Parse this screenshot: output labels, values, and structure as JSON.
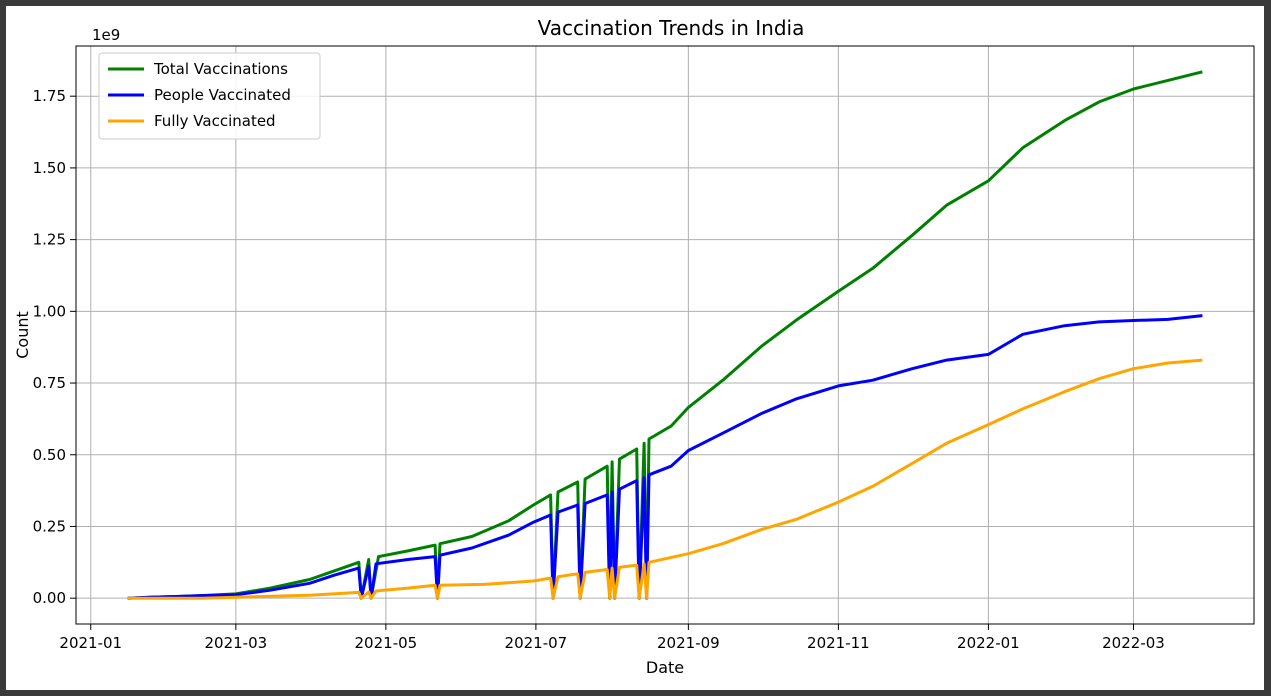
{
  "chart_data": {
    "type": "line",
    "title": "Vaccination Trends in India",
    "xlabel": "Date",
    "ylabel": "Count",
    "y_offset_label": "1e9",
    "y_scale_unit": 1000000000,
    "xlim": [
      "2020-12-26",
      "2022-04-19"
    ],
    "ylim": [
      -0.09,
      1.925
    ],
    "x_ticks": [
      "2021-01",
      "2021-03",
      "2021-05",
      "2021-07",
      "2021-09",
      "2021-11",
      "2022-01",
      "2022-03"
    ],
    "y_ticks": [
      0.0,
      0.25,
      0.5,
      0.75,
      1.0,
      1.25,
      1.5,
      1.75
    ],
    "y_tick_labels": [
      "0.00",
      "0.25",
      "0.50",
      "0.75",
      "1.00",
      "1.25",
      "1.50",
      "1.75"
    ],
    "grid": true,
    "legend_position": "top-left",
    "series": [
      {
        "name": "Total Vaccinations",
        "color": "#008000",
        "points": [
          [
            "2021-01-16",
            0.0
          ],
          [
            "2021-01-25",
            0.003
          ],
          [
            "2021-02-05",
            0.006
          ],
          [
            "2021-02-15",
            0.009
          ],
          [
            "2021-03-01",
            0.015
          ],
          [
            "2021-03-15",
            0.035
          ],
          [
            "2021-03-31",
            0.065
          ],
          [
            "2021-04-10",
            0.095
          ],
          [
            "2021-04-20",
            0.125
          ],
          [
            "2021-04-21",
            0.0
          ],
          [
            "2021-04-24",
            0.135
          ],
          [
            "2021-04-25",
            0.0
          ],
          [
            "2021-04-28",
            0.145
          ],
          [
            "2021-05-10",
            0.165
          ],
          [
            "2021-05-21",
            0.185
          ],
          [
            "2021-05-22",
            0.0
          ],
          [
            "2021-05-23",
            0.19
          ],
          [
            "2021-06-05",
            0.215
          ],
          [
            "2021-06-20",
            0.27
          ],
          [
            "2021-06-30",
            0.325
          ],
          [
            "2021-07-07",
            0.36
          ],
          [
            "2021-07-08",
            0.0
          ],
          [
            "2021-07-10",
            0.37
          ],
          [
            "2021-07-18",
            0.405
          ],
          [
            "2021-07-19",
            0.0
          ],
          [
            "2021-07-21",
            0.415
          ],
          [
            "2021-07-30",
            0.46
          ],
          [
            "2021-07-31",
            0.0
          ],
          [
            "2021-08-01",
            0.475
          ],
          [
            "2021-08-02",
            0.0
          ],
          [
            "2021-08-04",
            0.485
          ],
          [
            "2021-08-11",
            0.52
          ],
          [
            "2021-08-12",
            0.0
          ],
          [
            "2021-08-14",
            0.54
          ],
          [
            "2021-08-15",
            0.0
          ],
          [
            "2021-08-16",
            0.555
          ],
          [
            "2021-08-25",
            0.6
          ],
          [
            "2021-09-01",
            0.665
          ],
          [
            "2021-09-15",
            0.76
          ],
          [
            "2021-10-01",
            0.88
          ],
          [
            "2021-10-15",
            0.97
          ],
          [
            "2021-11-01",
            1.07
          ],
          [
            "2021-11-15",
            1.15
          ],
          [
            "2021-12-01",
            1.265
          ],
          [
            "2021-12-15",
            1.37
          ],
          [
            "2022-01-01",
            1.455
          ],
          [
            "2022-01-15",
            1.57
          ],
          [
            "2022-02-01",
            1.665
          ],
          [
            "2022-02-15",
            1.73
          ],
          [
            "2022-03-01",
            1.775
          ],
          [
            "2022-03-15",
            1.805
          ],
          [
            "2022-03-29",
            1.835
          ]
        ]
      },
      {
        "name": "People Vaccinated",
        "color": "#0000ff",
        "points": [
          [
            "2021-01-16",
            0.0
          ],
          [
            "2021-01-25",
            0.003
          ],
          [
            "2021-02-05",
            0.006
          ],
          [
            "2021-02-15",
            0.009
          ],
          [
            "2021-03-01",
            0.012
          ],
          [
            "2021-03-15",
            0.028
          ],
          [
            "2021-03-31",
            0.052
          ],
          [
            "2021-04-10",
            0.08
          ],
          [
            "2021-04-20",
            0.105
          ],
          [
            "2021-04-21",
            0.0
          ],
          [
            "2021-04-24",
            0.112
          ],
          [
            "2021-04-25",
            0.0
          ],
          [
            "2021-04-27",
            0.12
          ],
          [
            "2021-05-10",
            0.135
          ],
          [
            "2021-05-21",
            0.145
          ],
          [
            "2021-05-22",
            0.0
          ],
          [
            "2021-05-23",
            0.15
          ],
          [
            "2021-06-05",
            0.175
          ],
          [
            "2021-06-20",
            0.22
          ],
          [
            "2021-06-30",
            0.265
          ],
          [
            "2021-07-07",
            0.29
          ],
          [
            "2021-07-08",
            0.0
          ],
          [
            "2021-07-10",
            0.3
          ],
          [
            "2021-07-18",
            0.325
          ],
          [
            "2021-07-19",
            0.0
          ],
          [
            "2021-07-21",
            0.33
          ],
          [
            "2021-07-30",
            0.36
          ],
          [
            "2021-07-31",
            0.0
          ],
          [
            "2021-08-01",
            0.37
          ],
          [
            "2021-08-02",
            0.0
          ],
          [
            "2021-08-04",
            0.38
          ],
          [
            "2021-08-11",
            0.41
          ],
          [
            "2021-08-12",
            0.0
          ],
          [
            "2021-08-14",
            0.42
          ],
          [
            "2021-08-15",
            0.0
          ],
          [
            "2021-08-16",
            0.43
          ],
          [
            "2021-08-25",
            0.46
          ],
          [
            "2021-09-01",
            0.515
          ],
          [
            "2021-09-15",
            0.575
          ],
          [
            "2021-10-01",
            0.645
          ],
          [
            "2021-10-15",
            0.695
          ],
          [
            "2021-11-01",
            0.74
          ],
          [
            "2021-11-15",
            0.76
          ],
          [
            "2021-12-01",
            0.8
          ],
          [
            "2021-12-15",
            0.83
          ],
          [
            "2022-01-01",
            0.85
          ],
          [
            "2022-01-15",
            0.92
          ],
          [
            "2022-02-01",
            0.95
          ],
          [
            "2022-02-15",
            0.963
          ],
          [
            "2022-03-01",
            0.968
          ],
          [
            "2022-03-15",
            0.972
          ],
          [
            "2022-03-29",
            0.985
          ]
        ]
      },
      {
        "name": "Fully Vaccinated",
        "color": "#ffa500",
        "points": [
          [
            "2021-01-16",
            0.0
          ],
          [
            "2021-02-15",
            0.0
          ],
          [
            "2021-03-01",
            0.003
          ],
          [
            "2021-03-31",
            0.01
          ],
          [
            "2021-04-20",
            0.02
          ],
          [
            "2021-04-21",
            0.0
          ],
          [
            "2021-04-24",
            0.022
          ],
          [
            "2021-04-25",
            0.0
          ],
          [
            "2021-04-27",
            0.025
          ],
          [
            "2021-05-10",
            0.035
          ],
          [
            "2021-05-21",
            0.045
          ],
          [
            "2021-05-22",
            0.0
          ],
          [
            "2021-05-23",
            0.045
          ],
          [
            "2021-06-10",
            0.048
          ],
          [
            "2021-06-30",
            0.06
          ],
          [
            "2021-07-07",
            0.07
          ],
          [
            "2021-07-08",
            0.0
          ],
          [
            "2021-07-10",
            0.075
          ],
          [
            "2021-07-18",
            0.085
          ],
          [
            "2021-07-19",
            0.0
          ],
          [
            "2021-07-21",
            0.09
          ],
          [
            "2021-07-30",
            0.1
          ],
          [
            "2021-07-31",
            0.0
          ],
          [
            "2021-08-01",
            0.105
          ],
          [
            "2021-08-02",
            0.0
          ],
          [
            "2021-08-04",
            0.108
          ],
          [
            "2021-08-11",
            0.115
          ],
          [
            "2021-08-12",
            0.0
          ],
          [
            "2021-08-14",
            0.12
          ],
          [
            "2021-08-15",
            0.0
          ],
          [
            "2021-08-16",
            0.125
          ],
          [
            "2021-09-01",
            0.155
          ],
          [
            "2021-09-15",
            0.19
          ],
          [
            "2021-10-01",
            0.24
          ],
          [
            "2021-10-15",
            0.275
          ],
          [
            "2021-11-01",
            0.335
          ],
          [
            "2021-11-15",
            0.39
          ],
          [
            "2021-12-01",
            0.47
          ],
          [
            "2021-12-15",
            0.54
          ],
          [
            "2022-01-01",
            0.605
          ],
          [
            "2022-01-15",
            0.66
          ],
          [
            "2022-02-01",
            0.72
          ],
          [
            "2022-02-15",
            0.765
          ],
          [
            "2022-03-01",
            0.8
          ],
          [
            "2022-03-15",
            0.82
          ],
          [
            "2022-03-29",
            0.83
          ]
        ]
      }
    ]
  }
}
